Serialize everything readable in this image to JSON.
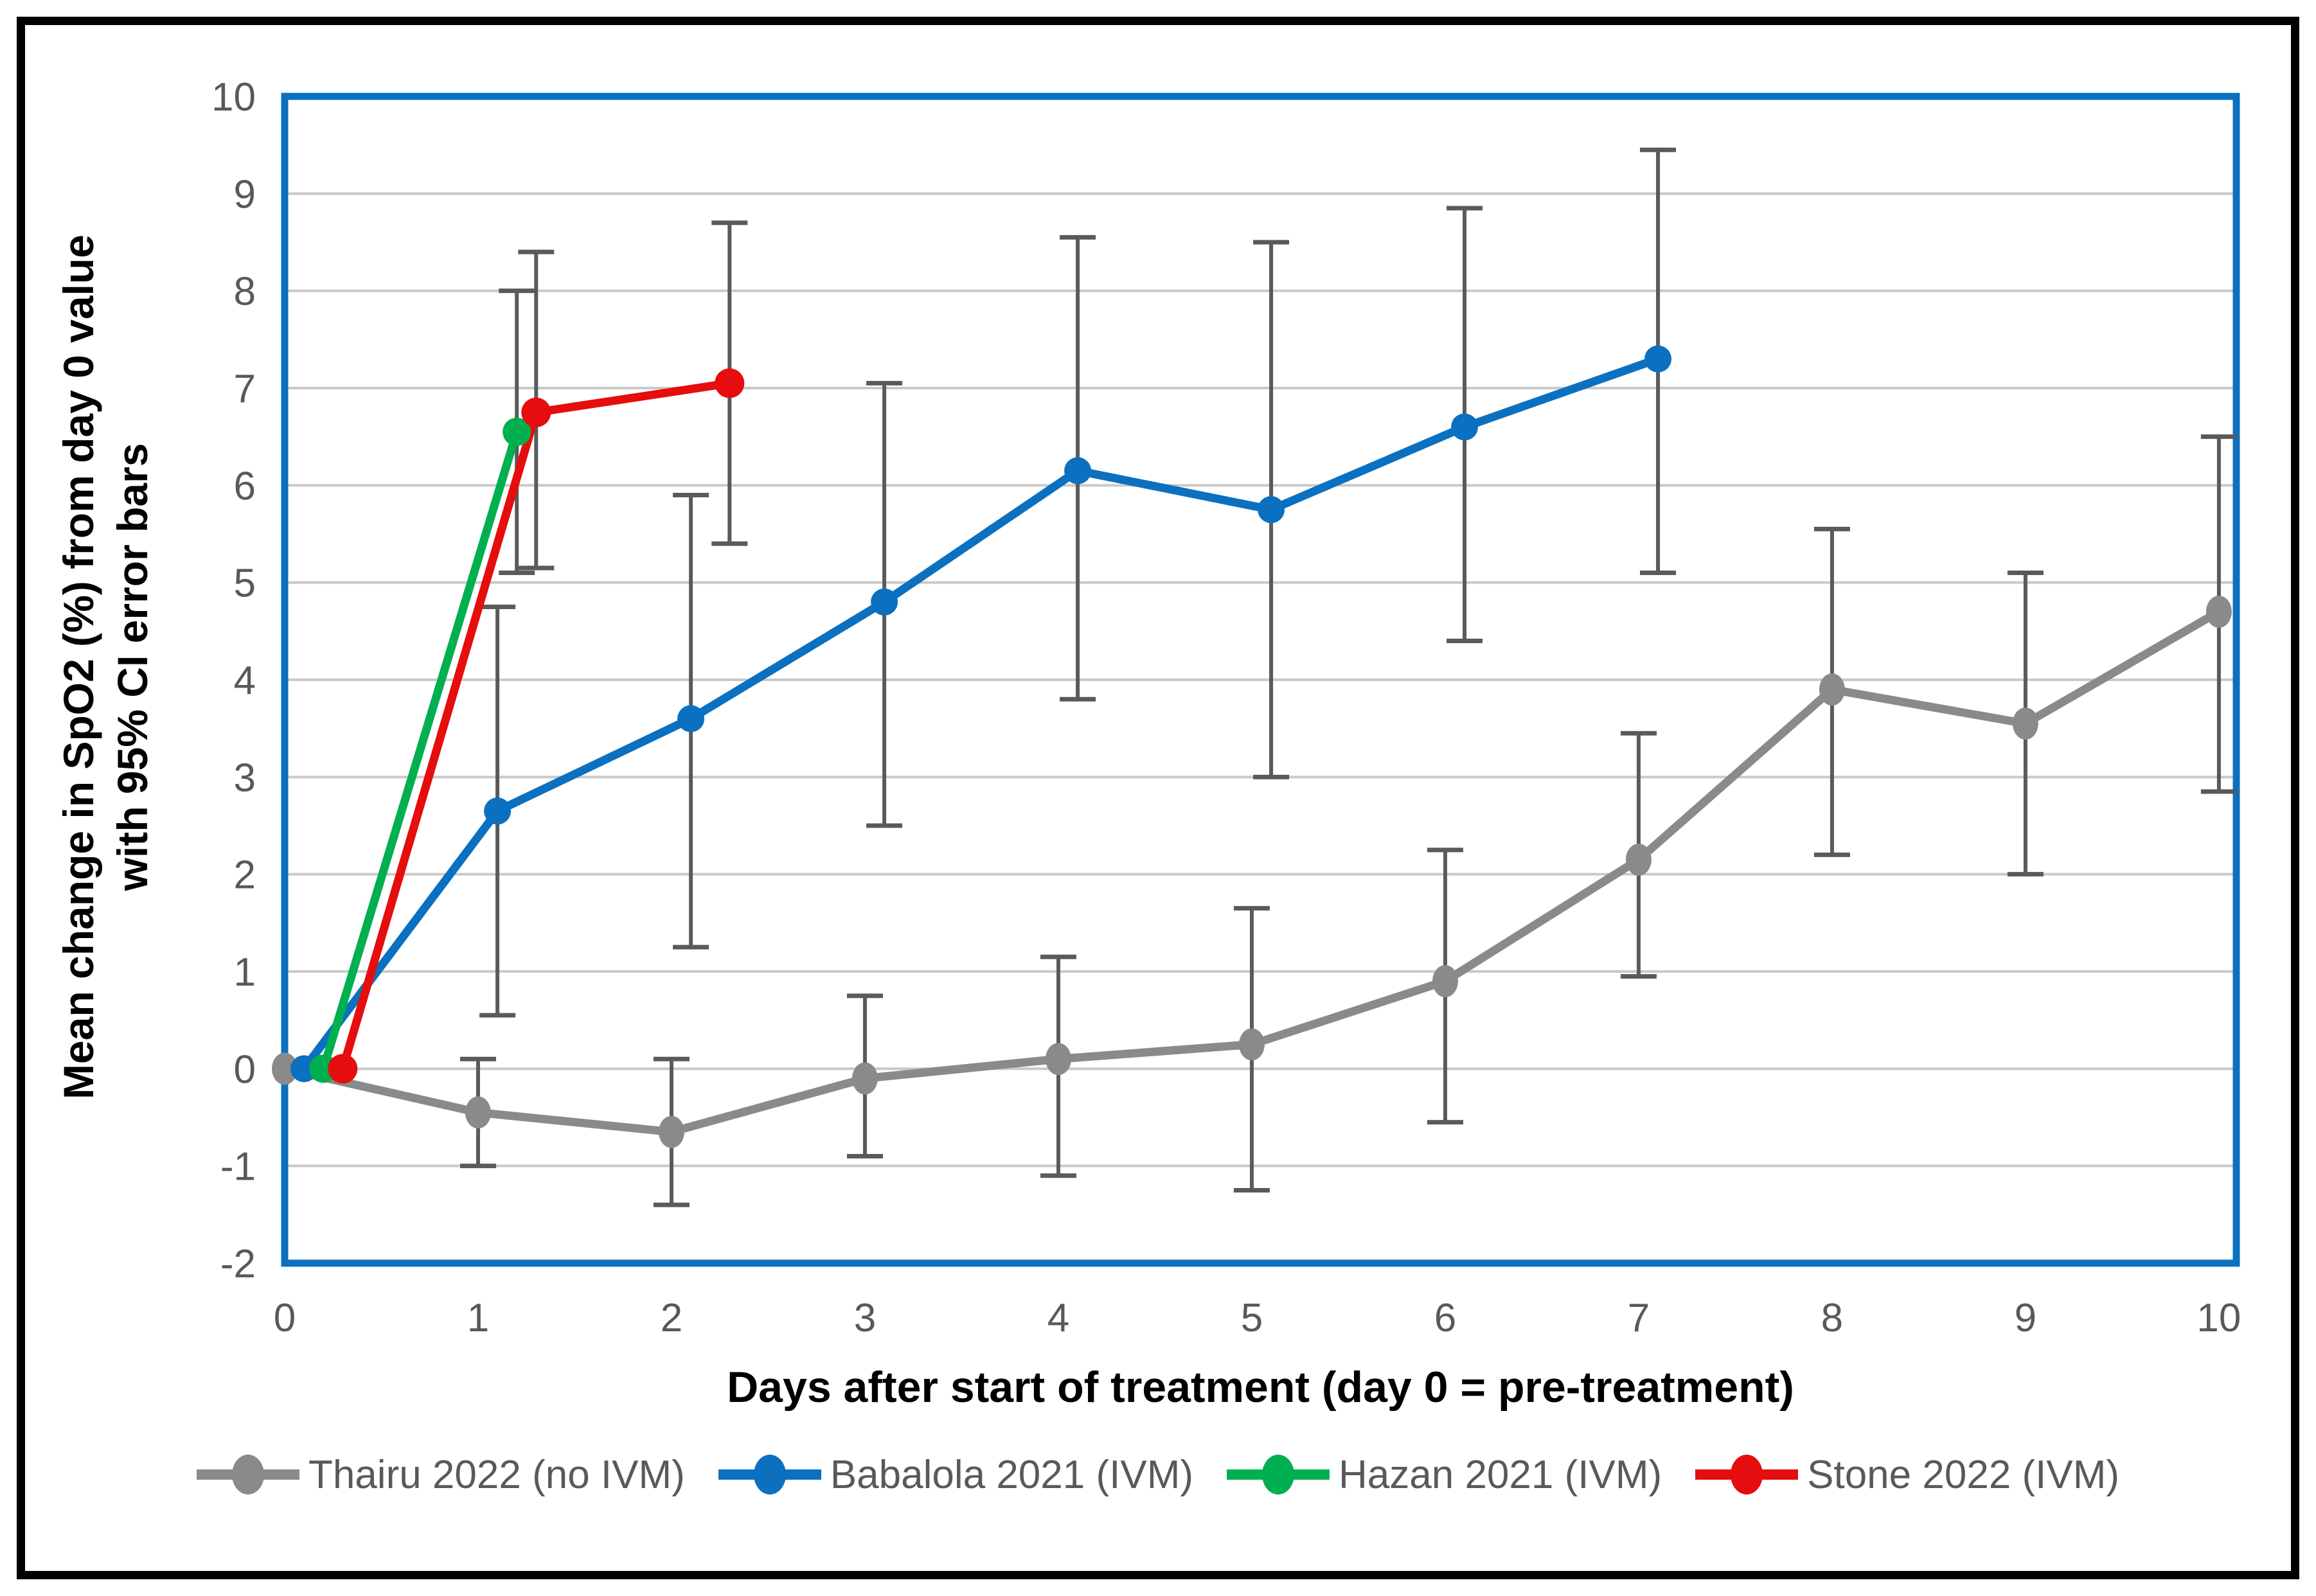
{
  "figure": {
    "y_axis_title_line1": "Mean change in SpO2 (%) from day 0 value",
    "y_axis_title_line2": "with 95% CI error bars",
    "x_axis_title": "Days after start of treatment (day 0 = pre-treatment)",
    "colors": {
      "outer_border": "#000000",
      "plot_border": "#0B70C0",
      "gridline": "#C9C9C9",
      "error_bar": "#5A5A5A",
      "tick_text": "#595959",
      "legend_text": "#595959",
      "background": "#FFFFFF"
    }
  },
  "chart_data": {
    "type": "line",
    "title": "",
    "xlabel": "Days after start of treatment (day 0 = pre-treatment)",
    "ylabel": "Mean change in SpO2 (%) from day 0 value with 95% CI error bars",
    "xlim": [
      0,
      10.09
    ],
    "ylim": [
      -2,
      10
    ],
    "x_ticks": [
      0,
      1,
      2,
      3,
      4,
      5,
      6,
      7,
      8,
      9,
      10
    ],
    "y_ticks": [
      -2,
      -1,
      0,
      1,
      2,
      3,
      4,
      5,
      6,
      7,
      8,
      9,
      10
    ],
    "grid": "horizontal-only",
    "legend_position": "bottom",
    "error_bars": "95% CI",
    "series": [
      {
        "name": "Thairu 2022 (no IVM)",
        "color": "#8A8A8A",
        "x": [
          0,
          1,
          2,
          3,
          4,
          5,
          6,
          7,
          8,
          9,
          10
        ],
        "y": [
          0,
          -0.45,
          -0.65,
          -0.1,
          0.1,
          0.25,
          0.9,
          2.15,
          3.9,
          3.55,
          4.7
        ],
        "ci_low": [
          null,
          -1.0,
          -1.4,
          -0.9,
          -1.1,
          -1.25,
          -0.55,
          0.95,
          2.2,
          2.0,
          2.85
        ],
        "ci_high": [
          null,
          0.1,
          0.1,
          0.75,
          1.15,
          1.65,
          2.25,
          3.45,
          5.55,
          5.1,
          6.5
        ]
      },
      {
        "name": "Babalola 2021 (IVM)",
        "color": "#0B70C0",
        "x": [
          0.1,
          1.1,
          2.1,
          3.1,
          4.1,
          5.1,
          6.1,
          7.1
        ],
        "y": [
          0,
          2.65,
          3.6,
          4.8,
          6.15,
          5.75,
          6.6,
          7.3
        ],
        "ci_low": [
          null,
          0.55,
          1.25,
          2.5,
          3.8,
          3.0,
          4.4,
          5.1
        ],
        "ci_high": [
          null,
          4.75,
          5.9,
          7.05,
          8.55,
          8.5,
          8.85,
          9.45
        ]
      },
      {
        "name": "Hazan 2021 (IVM)",
        "color": "#00AF50",
        "x": [
          0.2,
          1.2
        ],
        "y": [
          0,
          6.55
        ],
        "ci_low": [
          null,
          5.1
        ],
        "ci_high": [
          null,
          8.0
        ]
      },
      {
        "name": "Stone 2022 (IVM)",
        "color": "#E50D0D",
        "x": [
          0.3,
          1.3,
          2.3
        ],
        "y": [
          0,
          6.75,
          7.05
        ],
        "ci_low": [
          null,
          5.15,
          5.4
        ],
        "ci_high": [
          null,
          8.4,
          8.7
        ]
      }
    ]
  }
}
